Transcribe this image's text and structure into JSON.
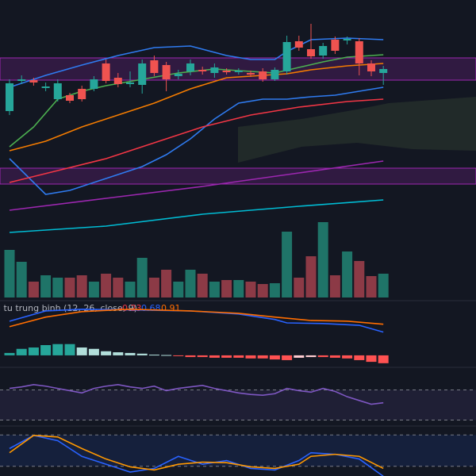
{
  "chart_data": [
    {
      "type": "candlestick",
      "ylim": [
        0,
        600
      ],
      "up_color": "#26a69a",
      "down_color": "#ef5350",
      "open": [
        460,
        498,
        499,
        489,
        475,
        480,
        488,
        488,
        520,
        502,
        494,
        493,
        524,
        518,
        504,
        510,
        512,
        508,
        511,
        509,
        508,
        510,
        500,
        510,
        548,
        538,
        530,
        550,
        549,
        548,
        520,
        508
      ],
      "close": [
        495,
        500,
        496,
        491,
        495,
        473,
        475,
        500,
        498,
        494,
        496,
        520,
        508,
        500,
        507,
        520,
        510,
        515,
        509,
        511,
        506,
        500,
        512,
        547,
        540,
        529,
        542,
        536,
        551,
        520,
        510,
        513
      ],
      "high": [
        500,
        505,
        502,
        496,
        500,
        483,
        492,
        504,
        525,
        508,
        510,
        525,
        530,
        522,
        512,
        525,
        516,
        520,
        514,
        514,
        511,
        514,
        515,
        555,
        555,
        570,
        546,
        554,
        554,
        552,
        524,
        517
      ],
      "low": [
        455,
        494,
        492,
        485,
        472,
        470,
        472,
        485,
        495,
        490,
        490,
        482,
        504,
        485,
        500,
        505,
        506,
        502,
        506,
        506,
        503,
        497,
        498,
        506,
        536,
        526,
        526,
        532,
        544,
        505,
        504,
        493
      ],
      "series": [
        {
          "color": "#2f7bf0",
          "x": [
            0,
            3,
            6,
            9,
            12,
            15,
            18,
            20,
            22,
            23,
            25,
            28,
            31
          ],
          "values": [
            490,
            505,
            518,
            530,
            540,
            542,
            530,
            525,
            525,
            535,
            550,
            552,
            550
          ]
        },
        {
          "color": "#2f7bf0",
          "x": [
            0,
            2,
            3,
            5,
            8,
            11,
            13,
            15,
            17,
            19,
            21,
            23,
            25,
            27,
            29,
            31
          ],
          "values": [
            400,
            370,
            355,
            360,
            375,
            390,
            405,
            425,
            450,
            470,
            475,
            475,
            478,
            480,
            485,
            490
          ]
        },
        {
          "color": "#4caf50",
          "x": [
            0,
            2,
            4,
            6,
            8,
            11,
            14,
            17,
            20,
            22,
            24,
            26,
            28,
            31
          ],
          "values": [
            415,
            440,
            475,
            485,
            492,
            500,
            508,
            513,
            510,
            508,
            515,
            522,
            528,
            531
          ]
        },
        {
          "color": "#f57c00",
          "x": [
            0,
            3,
            6,
            9,
            12,
            15,
            18,
            21,
            23,
            25,
            28,
            31
          ],
          "values": [
            410,
            422,
            440,
            455,
            470,
            488,
            502,
            505,
            507,
            512,
            517,
            520
          ]
        },
        {
          "color": "#f23645",
          "x": [
            0,
            4,
            8,
            12,
            16,
            20,
            24,
            28,
            31
          ],
          "values": [
            370,
            385,
            400,
            420,
            440,
            455,
            465,
            472,
            475
          ]
        },
        {
          "color": "#9c27b0",
          "x": [
            0,
            8,
            16,
            24,
            31
          ],
          "values": [
            335,
            350,
            365,
            382,
            397
          ]
        },
        {
          "color": "#00bcd4",
          "x": [
            0,
            8,
            16,
            24,
            31
          ],
          "values": [
            307,
            315,
            330,
            340,
            348
          ]
        }
      ]
    },
    {
      "type": "bar",
      "ylim": [
        0,
        100
      ],
      "up_color": "#1f7468",
      "down_color": "#8c3a46",
      "values": [
        60,
        45,
        20,
        28,
        25,
        25,
        28,
        20,
        30,
        25,
        20,
        50,
        25,
        35,
        20,
        35,
        30,
        20,
        22,
        22,
        20,
        17,
        18,
        83,
        25,
        52,
        95,
        28,
        58,
        46,
        27,
        30
      ]
    },
    {
      "type": "macd",
      "title": "i tu trung binh (12, 26, close, 9)",
      "ylim": [
        -0.35,
        1.6
      ],
      "histogram": {
        "colors": [
          "#26a69a",
          "#b2dfdb",
          "#ff5252",
          "#ffcdd2"
        ],
        "values": [
          0.07,
          0.19,
          0.23,
          0.3,
          0.33,
          0.33,
          0.23,
          0.19,
          0.12,
          0.09,
          0.07,
          0.05,
          0.02,
          0.01,
          -0.02,
          -0.05,
          -0.05,
          -0.07,
          -0.07,
          -0.07,
          -0.09,
          -0.09,
          -0.12,
          -0.14,
          -0.07,
          -0.05,
          -0.05,
          -0.07,
          -0.09,
          -0.14,
          -0.19,
          -0.23
        ]
      },
      "series": [
        {
          "color": "#2962ff",
          "x": [
            0,
            3,
            6,
            10,
            15,
            19,
            22,
            23,
            26,
            29,
            31
          ],
          "values": [
            1.0,
            1.3,
            1.35,
            1.33,
            1.3,
            1.21,
            1.05,
            0.95,
            0.93,
            0.88,
            0.68
          ]
        },
        {
          "color": "#ff6d00",
          "x": [
            0,
            3,
            6,
            10,
            15,
            19,
            22,
            25,
            28,
            31
          ],
          "values": [
            0.84,
            1.12,
            1.28,
            1.35,
            1.3,
            1.23,
            1.12,
            1.02,
            1.0,
            0.91
          ]
        }
      ]
    },
    {
      "type": "line",
      "ylim": [
        0,
        100
      ],
      "band": [
        30,
        70
      ],
      "band_color": "#7e57c2",
      "series": [
        {
          "color": "#7e57c2",
          "x": [
            0,
            1,
            2,
            3,
            4,
            5,
            6,
            7,
            8,
            9,
            10,
            11,
            12,
            13,
            14,
            15,
            16,
            17,
            18,
            19,
            20,
            21,
            22,
            23,
            24,
            25,
            26,
            27,
            28,
            29,
            30,
            31
          ],
          "values": [
            72,
            74,
            77,
            75,
            72,
            69,
            66,
            72,
            75,
            77,
            74,
            72,
            75,
            69,
            72,
            74,
            76,
            72,
            69,
            66,
            64,
            63,
            65,
            72,
            69,
            67,
            72,
            68,
            61,
            56,
            51,
            53
          ]
        }
      ]
    },
    {
      "type": "line",
      "ylim": [
        0,
        100
      ],
      "band": [
        20,
        80
      ],
      "band_color": "#2962ff",
      "series": [
        {
          "color": "#2962ff",
          "x": [
            0,
            2,
            4,
            6,
            8,
            10,
            12,
            14,
            16,
            18,
            20,
            22,
            24,
            25,
            27,
            29,
            31
          ],
          "values": [
            54,
            79,
            69,
            39,
            24,
            9,
            16,
            39,
            24,
            31,
            16,
            13,
            31,
            46,
            43,
            34,
            1
          ]
        },
        {
          "color": "#ff9800",
          "x": [
            0,
            2,
            4,
            6,
            8,
            10,
            12,
            14,
            16,
            18,
            20,
            22,
            24,
            25,
            27,
            29,
            31
          ],
          "values": [
            46,
            79,
            76,
            54,
            34,
            19,
            13,
            24,
            28,
            27,
            19,
            16,
            24,
            39,
            43,
            39,
            16
          ]
        }
      ]
    }
  ]
}
